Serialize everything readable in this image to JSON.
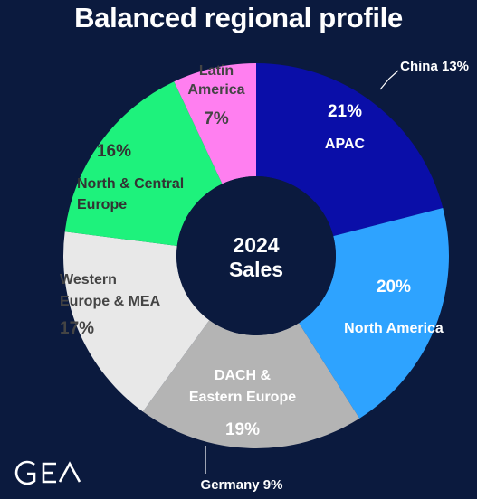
{
  "title": "Balanced regional profile",
  "chart_data": {
    "type": "pie",
    "center_label": [
      "2024",
      "Sales"
    ],
    "slices": [
      {
        "label": "APAC",
        "value": 21,
        "value_label": "21%",
        "color": "#0a0ea8",
        "text_color": "#ffffff"
      },
      {
        "label": "North America",
        "value": 20,
        "value_label": "20%",
        "color": "#2ea3ff",
        "text_color": "#ffffff"
      },
      {
        "label": "DACH & Eastern Europe",
        "value": 19,
        "value_label": "19%",
        "color": "#b4b4b4",
        "text_color": "#ffffff"
      },
      {
        "label": "Western Europe & MEA",
        "value": 17,
        "value_label": "17%",
        "color": "#e8e8e8",
        "text_color": "#444444"
      },
      {
        "label": "North & Central Europe",
        "value": 16,
        "value_label": "16%",
        "color": "#1ef27c",
        "text_color": "#333333"
      },
      {
        "label": "Latin America",
        "value": 7,
        "value_label": "7%",
        "color": "#ff7ff0",
        "text_color": "#444444"
      }
    ],
    "annotations": [
      {
        "text": "China 13%"
      },
      {
        "text": "Germany 9%"
      }
    ]
  },
  "logo": "GEA"
}
